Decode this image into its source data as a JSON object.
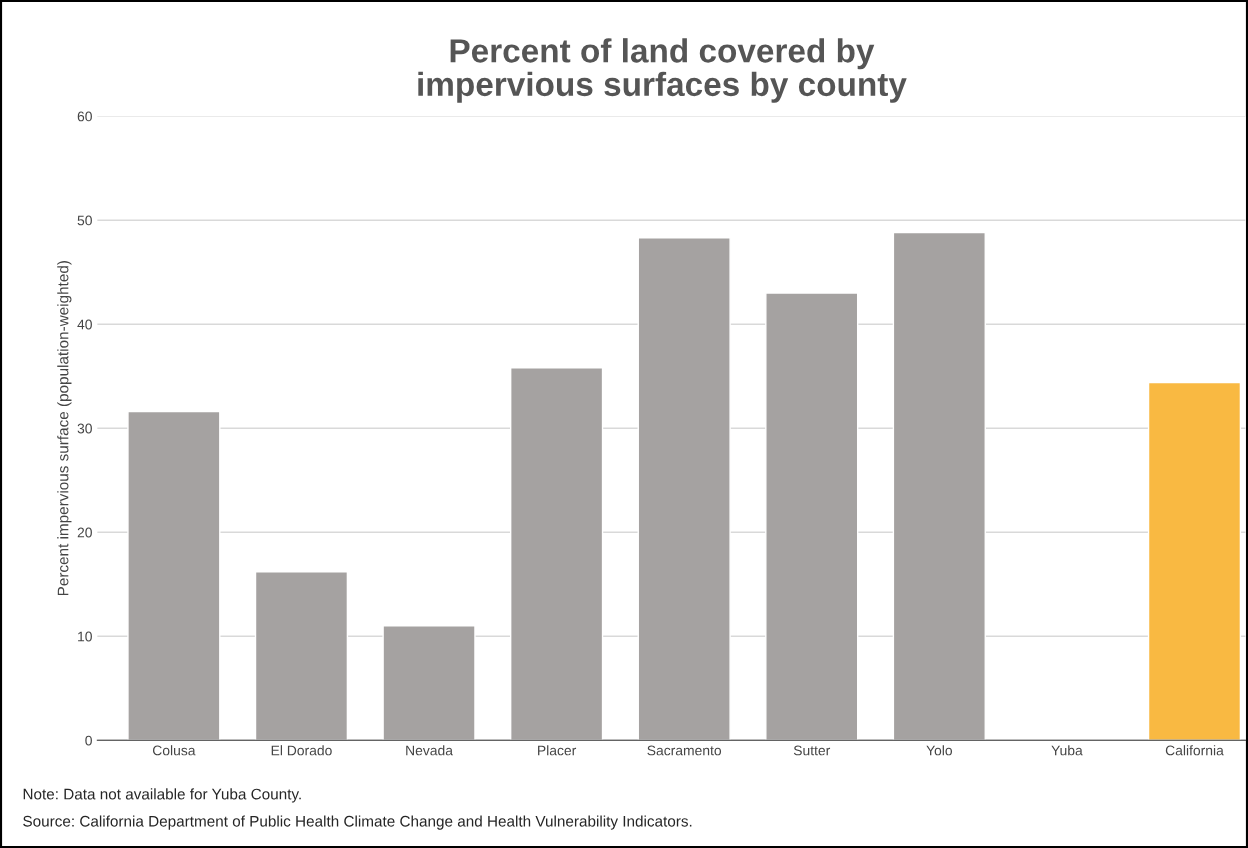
{
  "chart_data": {
    "type": "bar",
    "title": "Percent of land covered by\nimpervious surfaces by county",
    "ylabel": "Percent impervious surface (population-weighted)",
    "categories": [
      "Colusa",
      "El Dorado",
      "Nevada",
      "Placer",
      "Sacramento",
      "Sutter",
      "Yolo",
      "Yuba",
      "California"
    ],
    "values": [
      31.6,
      16.2,
      11.0,
      35.8,
      48.3,
      43.0,
      48.8,
      null,
      34.4
    ],
    "colors": [
      "#a5a2a1",
      "#a5a2a1",
      "#a5a2a1",
      "#a5a2a1",
      "#a5a2a1",
      "#a5a2a1",
      "#a5a2a1",
      "#a5a2a1",
      "#f9b942"
    ],
    "ylim": [
      0,
      60
    ],
    "yticks": [
      0,
      10,
      20,
      30,
      40,
      50,
      60
    ],
    "grid": "y",
    "legend": false,
    "annotations": [
      "Note: Data not available for Yuba County.",
      "Source: California Department of Public Health Climate Change and Health Vulnerability Indicators."
    ]
  }
}
